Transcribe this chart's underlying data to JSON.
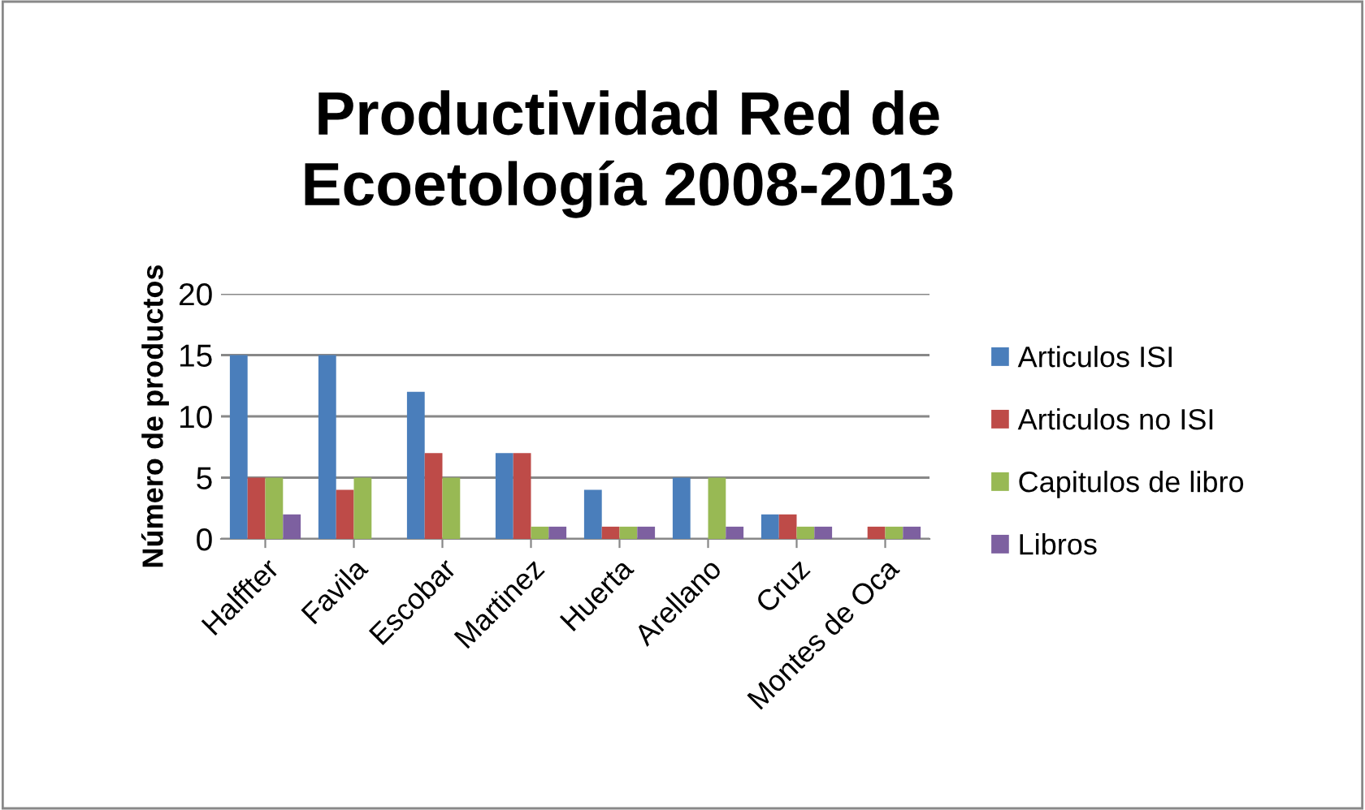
{
  "chart_data": {
    "type": "bar",
    "title": "Productividad Red de\nEcoetología 2008-2013",
    "ylabel": "Número de productos",
    "categories": [
      "Halffter",
      "Favila",
      "Escobar",
      "Martinez",
      "Huerta",
      "Arellano",
      "Cruz",
      "Montes de Oca"
    ],
    "series": [
      {
        "name": "Articulos ISI",
        "color": "#4a7ebb",
        "values": [
          15,
          15,
          12,
          7,
          4,
          5,
          2,
          0
        ]
      },
      {
        "name": "Articulos no ISI",
        "color": "#be4b48",
        "values": [
          5,
          4,
          7,
          7,
          1,
          0,
          2,
          1
        ]
      },
      {
        "name": "Capitulos de libro",
        "color": "#98b954",
        "values": [
          5,
          5,
          5,
          1,
          1,
          5,
          1,
          1
        ]
      },
      {
        "name": "Libros",
        "color": "#7d60a0",
        "values": [
          2,
          0,
          0,
          1,
          1,
          1,
          1,
          1
        ]
      }
    ],
    "ylim": [
      0,
      20
    ],
    "yticks": [
      0,
      5,
      10,
      15,
      20
    ],
    "grid": "y",
    "legend": "right"
  }
}
